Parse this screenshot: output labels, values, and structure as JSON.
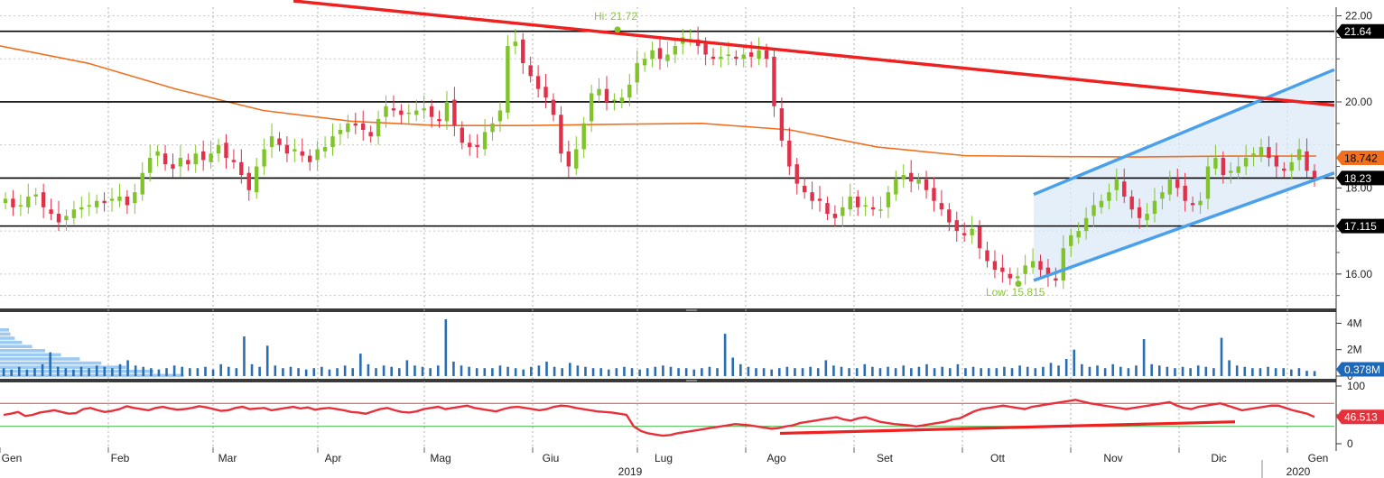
{
  "chart_data": [
    {
      "type": "candlestick",
      "panel": "price",
      "y_ticks": [
        "22.00",
        "20.00",
        "18.00",
        "16.00"
      ],
      "ylim": [
        15.2,
        22.2
      ],
      "months": [
        "Gen",
        "Feb",
        "Mar",
        "Apr",
        "Mag",
        "Giu",
        "Lug",
        "Ago",
        "Set",
        "Ott",
        "Nov",
        "Dic",
        "Gen"
      ],
      "years": [
        "2019",
        "2020"
      ],
      "hi_label": "Hi: 21.72",
      "low_label": "Low: 15.815",
      "hi_value": 21.72,
      "low_value": 15.815,
      "horizontal_levels": [
        {
          "label": "21.64",
          "value": 21.64
        },
        {
          "label": "20.00",
          "value": 20.0
        },
        {
          "label": "18.23",
          "value": 18.23
        },
        {
          "label": "17.115",
          "value": 17.115
        }
      ],
      "moving_average_label": "18.742",
      "moving_average_value": 18.742,
      "last_close_label": "18.23",
      "closes": [
        17.75,
        17.55,
        17.6,
        17.8,
        17.85,
        17.55,
        17.4,
        17.2,
        17.35,
        17.5,
        17.55,
        17.6,
        17.7,
        17.65,
        17.75,
        17.8,
        17.6,
        17.9,
        18.35,
        18.7,
        18.85,
        18.55,
        18.45,
        18.7,
        18.55,
        18.8,
        18.65,
        18.8,
        19.0,
        18.7,
        18.6,
        18.3,
        17.95,
        18.5,
        18.9,
        19.2,
        19.0,
        18.8,
        18.9,
        18.75,
        18.6,
        18.9,
        18.95,
        19.2,
        19.35,
        19.5,
        19.45,
        19.35,
        19.2,
        19.6,
        19.9,
        19.8,
        19.7,
        19.75,
        19.8,
        19.85,
        19.65,
        19.55,
        20.0,
        19.45,
        19.05,
        18.95,
        18.95,
        19.3,
        19.5,
        19.8,
        21.3,
        21.4,
        20.9,
        20.6,
        20.3,
        20.1,
        19.7,
        18.8,
        18.5,
        18.9,
        19.5,
        20.2,
        20.3,
        20.0,
        20.05,
        20.1,
        20.4,
        20.9,
        21.0,
        21.2,
        21.0,
        21.1,
        21.3,
        21.5,
        21.45,
        21.3,
        21.1,
        21.0,
        21.05,
        21.1,
        21.0,
        21.1,
        21.05,
        21.2,
        21.0,
        19.9,
        19.1,
        18.5,
        18.1,
        17.9,
        17.7,
        17.7,
        17.4,
        17.3,
        17.55,
        17.8,
        17.55,
        17.6,
        17.5,
        17.5,
        17.9,
        18.2,
        18.3,
        18.15,
        18.2,
        17.95,
        17.7,
        17.5,
        17.2,
        17.0,
        16.9,
        17.05,
        16.6,
        16.3,
        16.1,
        16.05,
        15.9,
        15.95,
        16.2,
        16.3,
        16.1,
        15.95,
        15.85,
        16.6,
        16.9,
        17.0,
        17.3,
        17.6,
        17.7,
        17.9,
        18.2,
        17.8,
        17.5,
        17.3,
        17.4,
        17.7,
        17.9,
        18.2,
        18.0,
        17.7,
        17.6,
        17.7,
        18.5,
        18.7,
        18.3,
        18.4,
        18.5,
        18.7,
        18.8,
        18.95,
        18.7,
        18.5,
        18.4,
        18.6,
        18.9,
        18.4,
        18.23
      ],
      "ma_values": [
        21.3,
        20.9,
        20.3,
        19.8,
        19.55,
        19.45,
        19.45,
        19.48,
        19.5,
        19.35,
        18.95,
        18.75,
        18.73,
        18.72,
        18.74,
        18.742
      ],
      "channel_note": "",
      "trendline_note": ""
    },
    {
      "type": "bar",
      "panel": "volume",
      "y_ticks": [
        "4M",
        "2M",
        "0"
      ],
      "ylim": [
        0,
        4.3
      ],
      "last_value_label": "0.378M",
      "values": [
        0.6,
        0.5,
        0.7,
        0.5,
        0.6,
        0.9,
        1.8,
        0.7,
        0.6,
        0.5,
        0.7,
        0.6,
        0.8,
        0.7,
        0.6,
        0.9,
        1.2,
        0.8,
        0.7,
        0.6,
        0.5,
        0.6,
        0.8,
        0.7,
        0.6,
        0.6,
        0.7,
        0.5,
        0.9,
        0.7,
        0.6,
        3.0,
        0.9,
        0.7,
        2.3,
        0.8,
        0.6,
        0.7,
        0.6,
        0.5,
        0.6,
        0.7,
        0.5,
        0.6,
        0.8,
        0.6,
        1.7,
        0.9,
        0.6,
        0.8,
        0.7,
        0.6,
        1.2,
        0.8,
        0.7,
        0.6,
        0.8,
        4.3,
        1.1,
        0.8,
        0.7,
        0.6,
        0.6,
        0.6,
        0.8,
        0.7,
        0.6,
        0.5,
        0.7,
        0.8,
        1.1,
        0.7,
        0.6,
        1.0,
        0.8,
        0.7,
        0.6,
        0.6,
        0.5,
        0.6,
        0.7,
        0.6,
        0.5,
        0.6,
        0.7,
        0.8,
        0.7,
        0.6,
        0.6,
        0.5,
        0.6,
        0.7,
        0.6,
        3.2,
        1.4,
        0.9,
        0.7,
        0.6,
        0.6,
        0.5,
        0.6,
        0.7,
        0.6,
        0.6,
        0.7,
        0.6,
        1.2,
        0.8,
        0.7,
        0.6,
        0.6,
        0.9,
        0.7,
        0.6,
        0.7,
        0.6,
        0.8,
        0.6,
        0.7,
        0.9,
        0.6,
        0.7,
        0.6,
        0.9,
        0.6,
        0.7,
        0.6,
        0.6,
        0.6,
        0.7,
        0.6,
        0.8,
        0.7,
        0.6,
        0.7,
        1.0,
        0.8,
        1.3,
        2.0,
        0.9,
        0.7,
        0.8,
        0.6,
        0.9,
        0.7,
        0.6,
        0.8,
        2.8,
        0.9,
        0.8,
        0.7,
        0.6,
        0.7,
        0.6,
        0.8,
        0.7,
        0.6,
        2.9,
        1.2,
        0.8,
        0.7,
        0.6,
        0.6,
        0.7,
        0.6,
        0.6,
        0.5,
        0.6,
        0.4,
        0.378
      ]
    },
    {
      "type": "line",
      "panel": "rsi",
      "y_ticks": [
        "100",
        "50",
        "0"
      ],
      "ylim": [
        0,
        100
      ],
      "overbought": 70,
      "oversold": 30,
      "last_value_label": "46.513",
      "values": [
        50,
        52,
        55,
        48,
        50,
        54,
        56,
        58,
        55,
        52,
        53,
        60,
        62,
        58,
        55,
        57,
        60,
        65,
        62,
        60,
        58,
        62,
        64,
        61,
        59,
        60,
        62,
        65,
        63,
        60,
        57,
        58,
        62,
        64,
        60,
        61,
        62,
        58,
        60,
        62,
        64,
        61,
        63,
        59,
        61,
        62,
        60,
        58,
        55,
        54,
        52,
        56,
        60,
        62,
        58,
        55,
        54,
        56,
        60,
        62,
        64,
        60,
        62,
        64,
        66,
        62,
        60,
        58,
        56,
        60,
        63,
        64,
        62,
        60,
        58,
        60,
        64,
        66,
        65,
        62,
        60,
        58,
        56,
        55,
        54,
        52,
        50,
        30,
        22,
        18,
        16,
        14,
        15,
        18,
        20,
        22,
        24,
        26,
        28,
        30,
        32,
        34,
        33,
        32,
        30,
        28,
        26,
        27,
        30,
        32,
        36,
        38,
        40,
        42,
        44,
        46,
        42,
        40,
        44,
        46,
        42,
        38,
        36,
        34,
        33,
        32,
        30,
        32,
        34,
        36,
        38,
        42,
        44,
        50,
        56,
        60,
        62,
        64,
        66,
        64,
        62,
        60,
        64,
        66,
        68,
        70,
        72,
        74,
        76,
        73,
        70,
        68,
        66,
        64,
        62,
        60,
        62,
        64,
        66,
        68,
        70,
        72,
        66,
        62,
        60,
        64,
        66,
        68,
        70,
        66,
        62,
        58,
        60,
        62,
        64,
        66,
        66,
        62,
        58,
        55,
        52,
        46.513
      ],
      "trendline_note": ""
    }
  ],
  "colors": {
    "up_candle": "#80c42a",
    "down_candle": "#e0304a",
    "trendline_red": "#ee2020",
    "moving_average": "#f07020",
    "channel_blue": "#4aa0ea",
    "channel_fill": "#dbe9f8",
    "volume_bar": "#2a6db0",
    "volume_profile": "#9ccaf2",
    "rsi_line": "#e8303a",
    "rsi_upper": "#e04040",
    "rsi_lower": "#3cb040",
    "label_black_bg": "#000000",
    "label_ma_bg": "#f07020",
    "label_rsi_bg": "#e8303a",
    "label_vol_bg": "#1e68b8"
  }
}
